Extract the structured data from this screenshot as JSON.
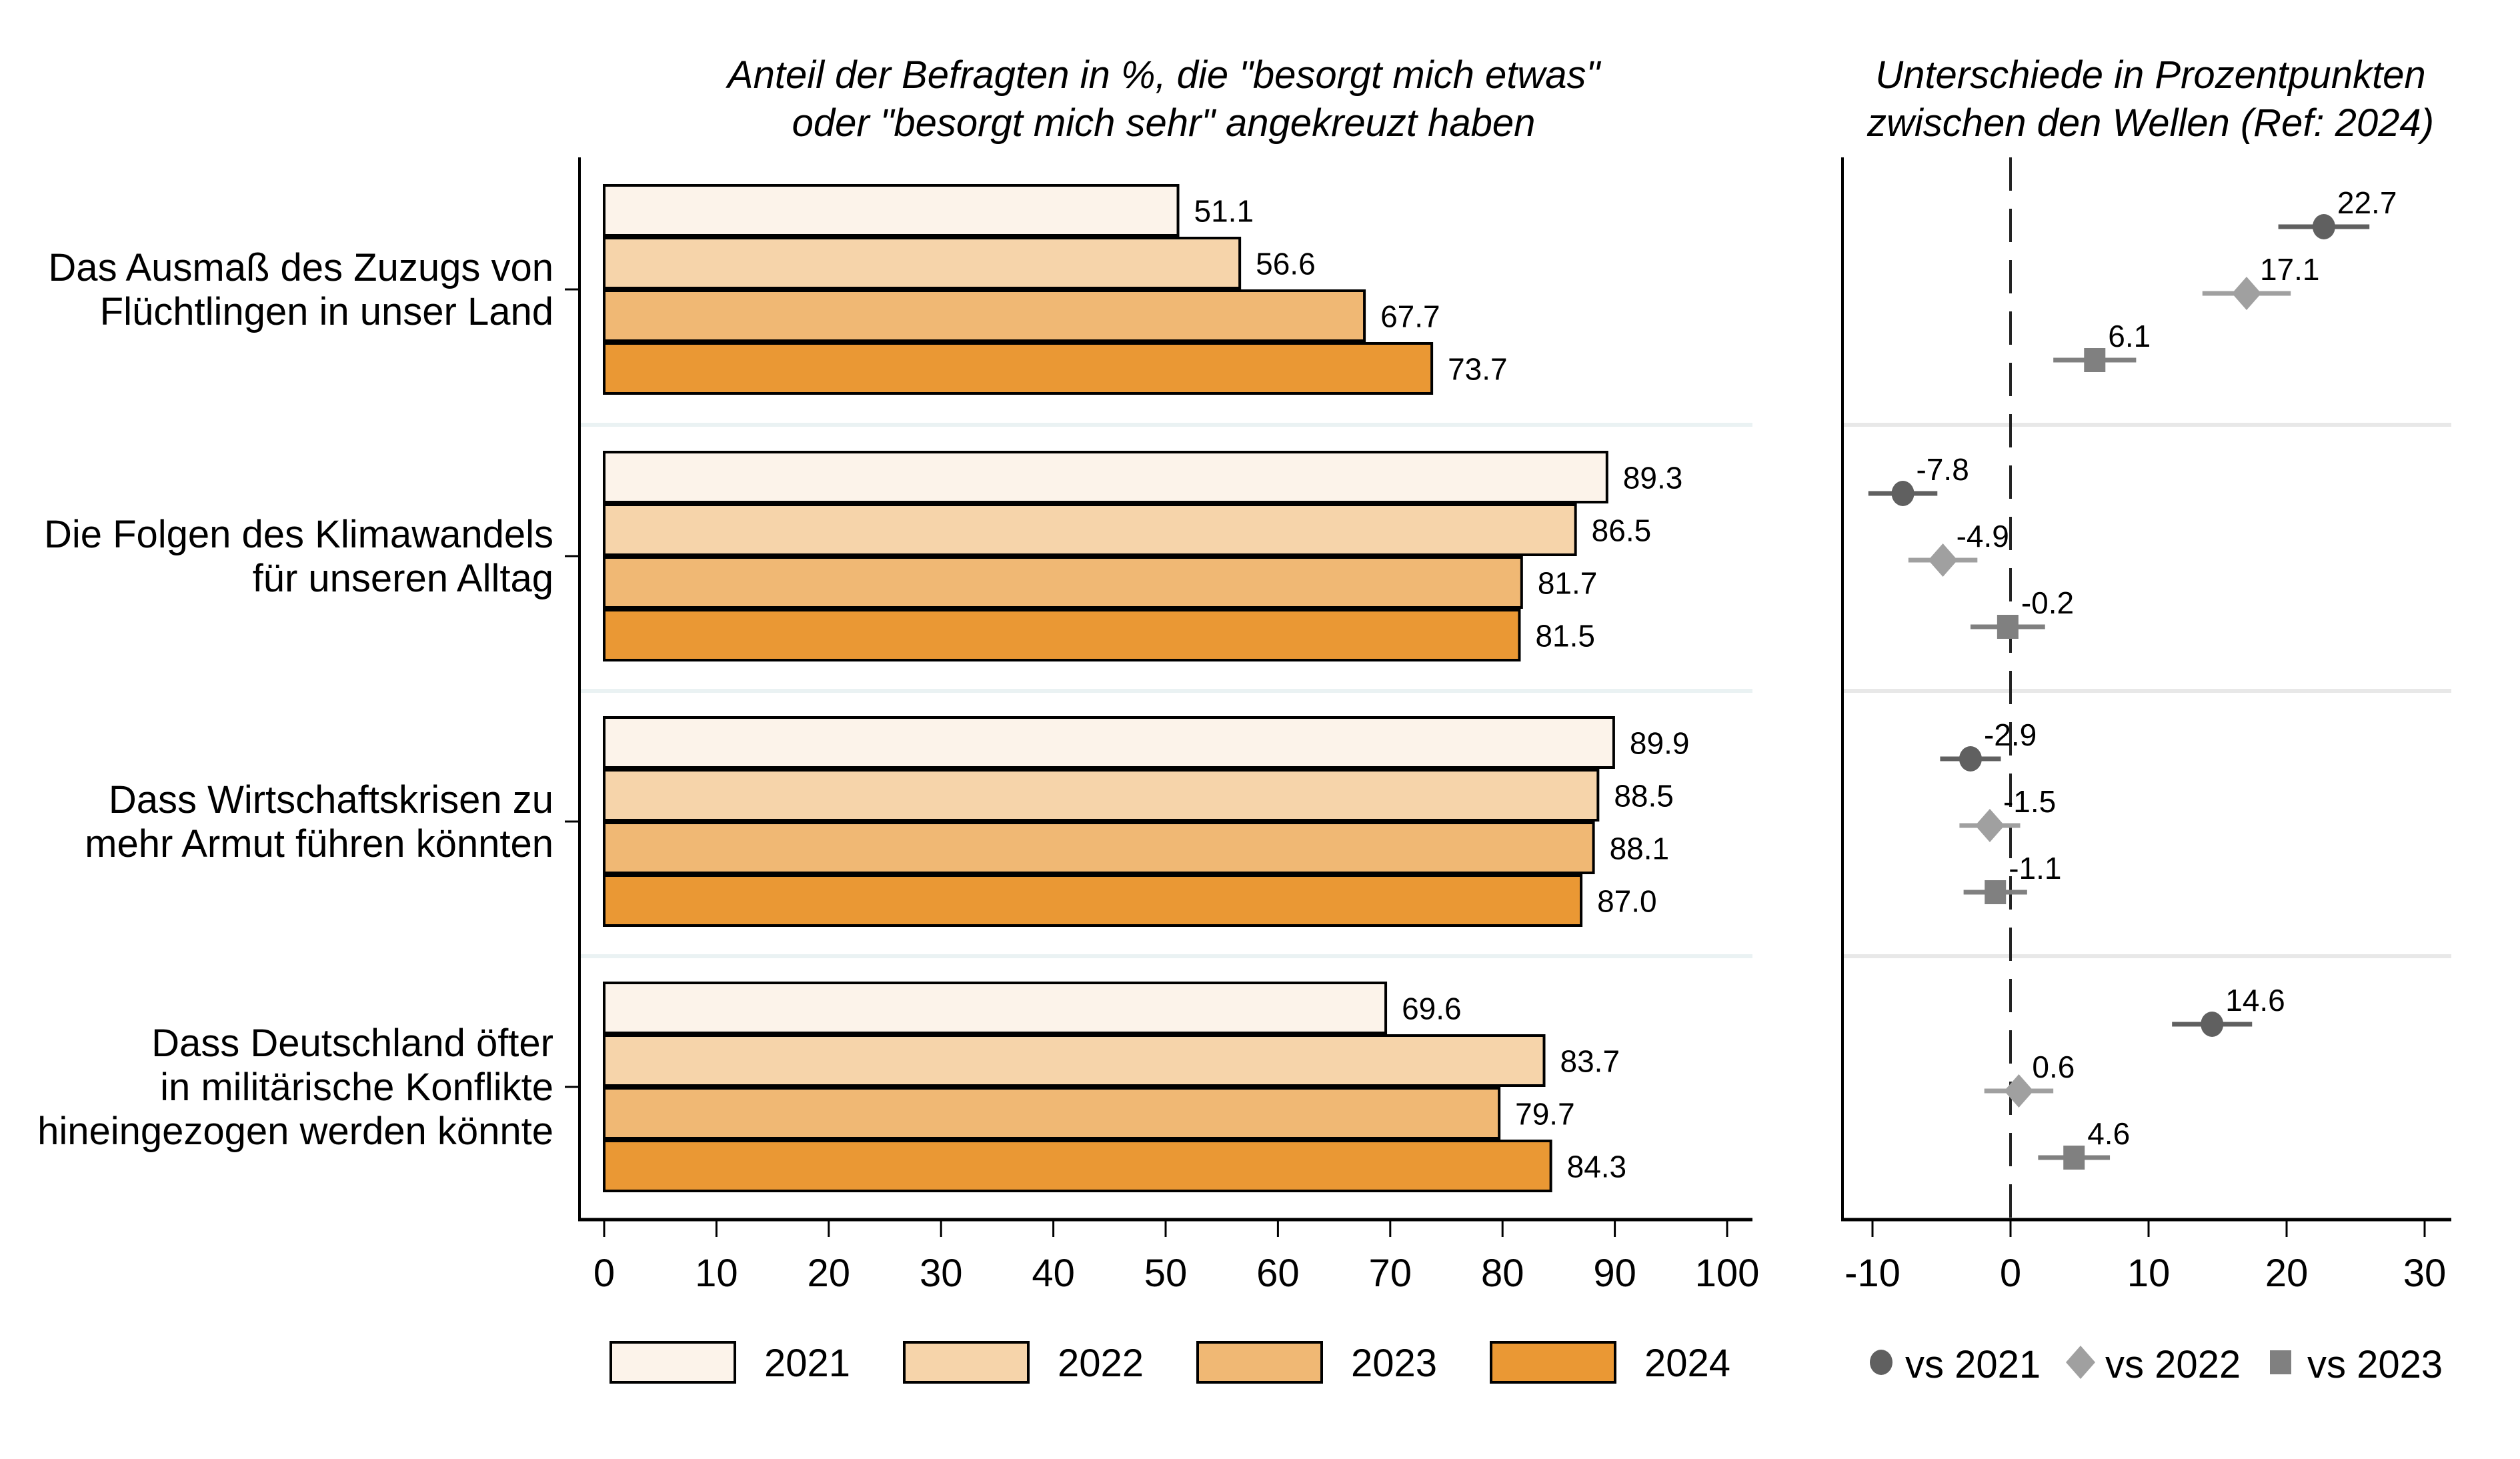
{
  "chart_data": [
    {
      "type": "bar",
      "orientation": "horizontal",
      "title": "Anteil der Befragten in %, die \"besorgt mich etwas\" oder \"besorgt mich sehr\" angekreuzt haben",
      "title_lines": [
        "Anteil der Befragten in %, die \"besorgt mich etwas\"",
        "oder \"besorgt mich sehr\" angekreuzt haben"
      ],
      "xlabel": "",
      "ylabel": "",
      "xlim": [
        0,
        100
      ],
      "xticks": [
        0,
        10,
        20,
        30,
        40,
        50,
        60,
        70,
        80,
        90,
        100
      ],
      "categories": [
        [
          "Das Ausmaß des Zuzugs von",
          "Flüchtlingen in unser Land"
        ],
        [
          "Die Folgen des Klimawandels",
          "für unseren Alltag"
        ],
        [
          "Dass Wirtschaftskrisen zu",
          "mehr Armut führen könnten"
        ],
        [
          "Dass Deutschland öfter",
          "in militärische Konflikte",
          "hineingezogen werden könnte"
        ]
      ],
      "series": [
        {
          "name": "2021",
          "color": "#FCF3EA",
          "values": [
            51.1,
            89.3,
            89.9,
            69.6
          ]
        },
        {
          "name": "2022",
          "color": "#F6D4AA",
          "values": [
            56.6,
            86.5,
            88.5,
            83.7
          ]
        },
        {
          "name": "2023",
          "color": "#F0B874",
          "values": [
            67.7,
            81.7,
            88.1,
            79.7
          ]
        },
        {
          "name": "2024",
          "color": "#EA9834",
          "values": [
            73.7,
            81.5,
            87.0,
            84.3
          ]
        }
      ],
      "value_labels": [
        [
          "51.1",
          "89.3",
          "89.9",
          "69.6"
        ],
        [
          "56.6",
          "86.5",
          "88.5",
          "83.7"
        ],
        [
          "67.7",
          "81.7",
          "88.1",
          "79.7"
        ],
        [
          "73.7",
          "81.5",
          "87.0",
          "84.3"
        ]
      ],
      "legend": {
        "position": "bottom",
        "entries": [
          "2021",
          "2022",
          "2023",
          "2024"
        ]
      },
      "grid": false
    },
    {
      "type": "scatter",
      "subtype": "dot-whisker",
      "title": "Unterschiede in Prozentpunkten zwischen den Wellen (Ref: 2024)",
      "title_lines": [
        "Unterschiede in Prozentpunkten",
        "zwischen den Wellen (Ref: 2024)"
      ],
      "xlim": [
        -11.5,
        32
      ],
      "xticks": [
        -10,
        0,
        10,
        20,
        30
      ],
      "reference_line": 0,
      "series": [
        {
          "name": "vs 2021",
          "marker": "circle",
          "color": "#606060",
          "values": [
            22.7,
            -7.8,
            -2.9,
            14.6
          ],
          "ci_halfwidth": [
            3.3,
            2.5,
            2.2,
            2.9
          ]
        },
        {
          "name": "vs 2022",
          "marker": "diamond",
          "color": "#A0A0A0",
          "values": [
            17.1,
            -4.9,
            -1.5,
            0.6
          ],
          "ci_halfwidth": [
            3.2,
            2.5,
            2.2,
            2.5
          ]
        },
        {
          "name": "vs 2023",
          "marker": "square",
          "color": "#808080",
          "values": [
            6.1,
            -0.2,
            -1.1,
            4.6
          ],
          "ci_halfwidth": [
            3.0,
            2.7,
            2.3,
            2.6
          ]
        }
      ],
      "value_labels": [
        [
          "22.7",
          "-7.8",
          "-2.9",
          "14.6"
        ],
        [
          "17.1",
          "-4.9",
          "-1.5",
          "0.6"
        ],
        [
          "6.1",
          "-0.2",
          "-1.1",
          "4.6"
        ]
      ],
      "legend": {
        "position": "bottom",
        "entries": [
          "vs 2021",
          "vs 2022",
          "vs 2023"
        ]
      },
      "grid": false
    }
  ]
}
